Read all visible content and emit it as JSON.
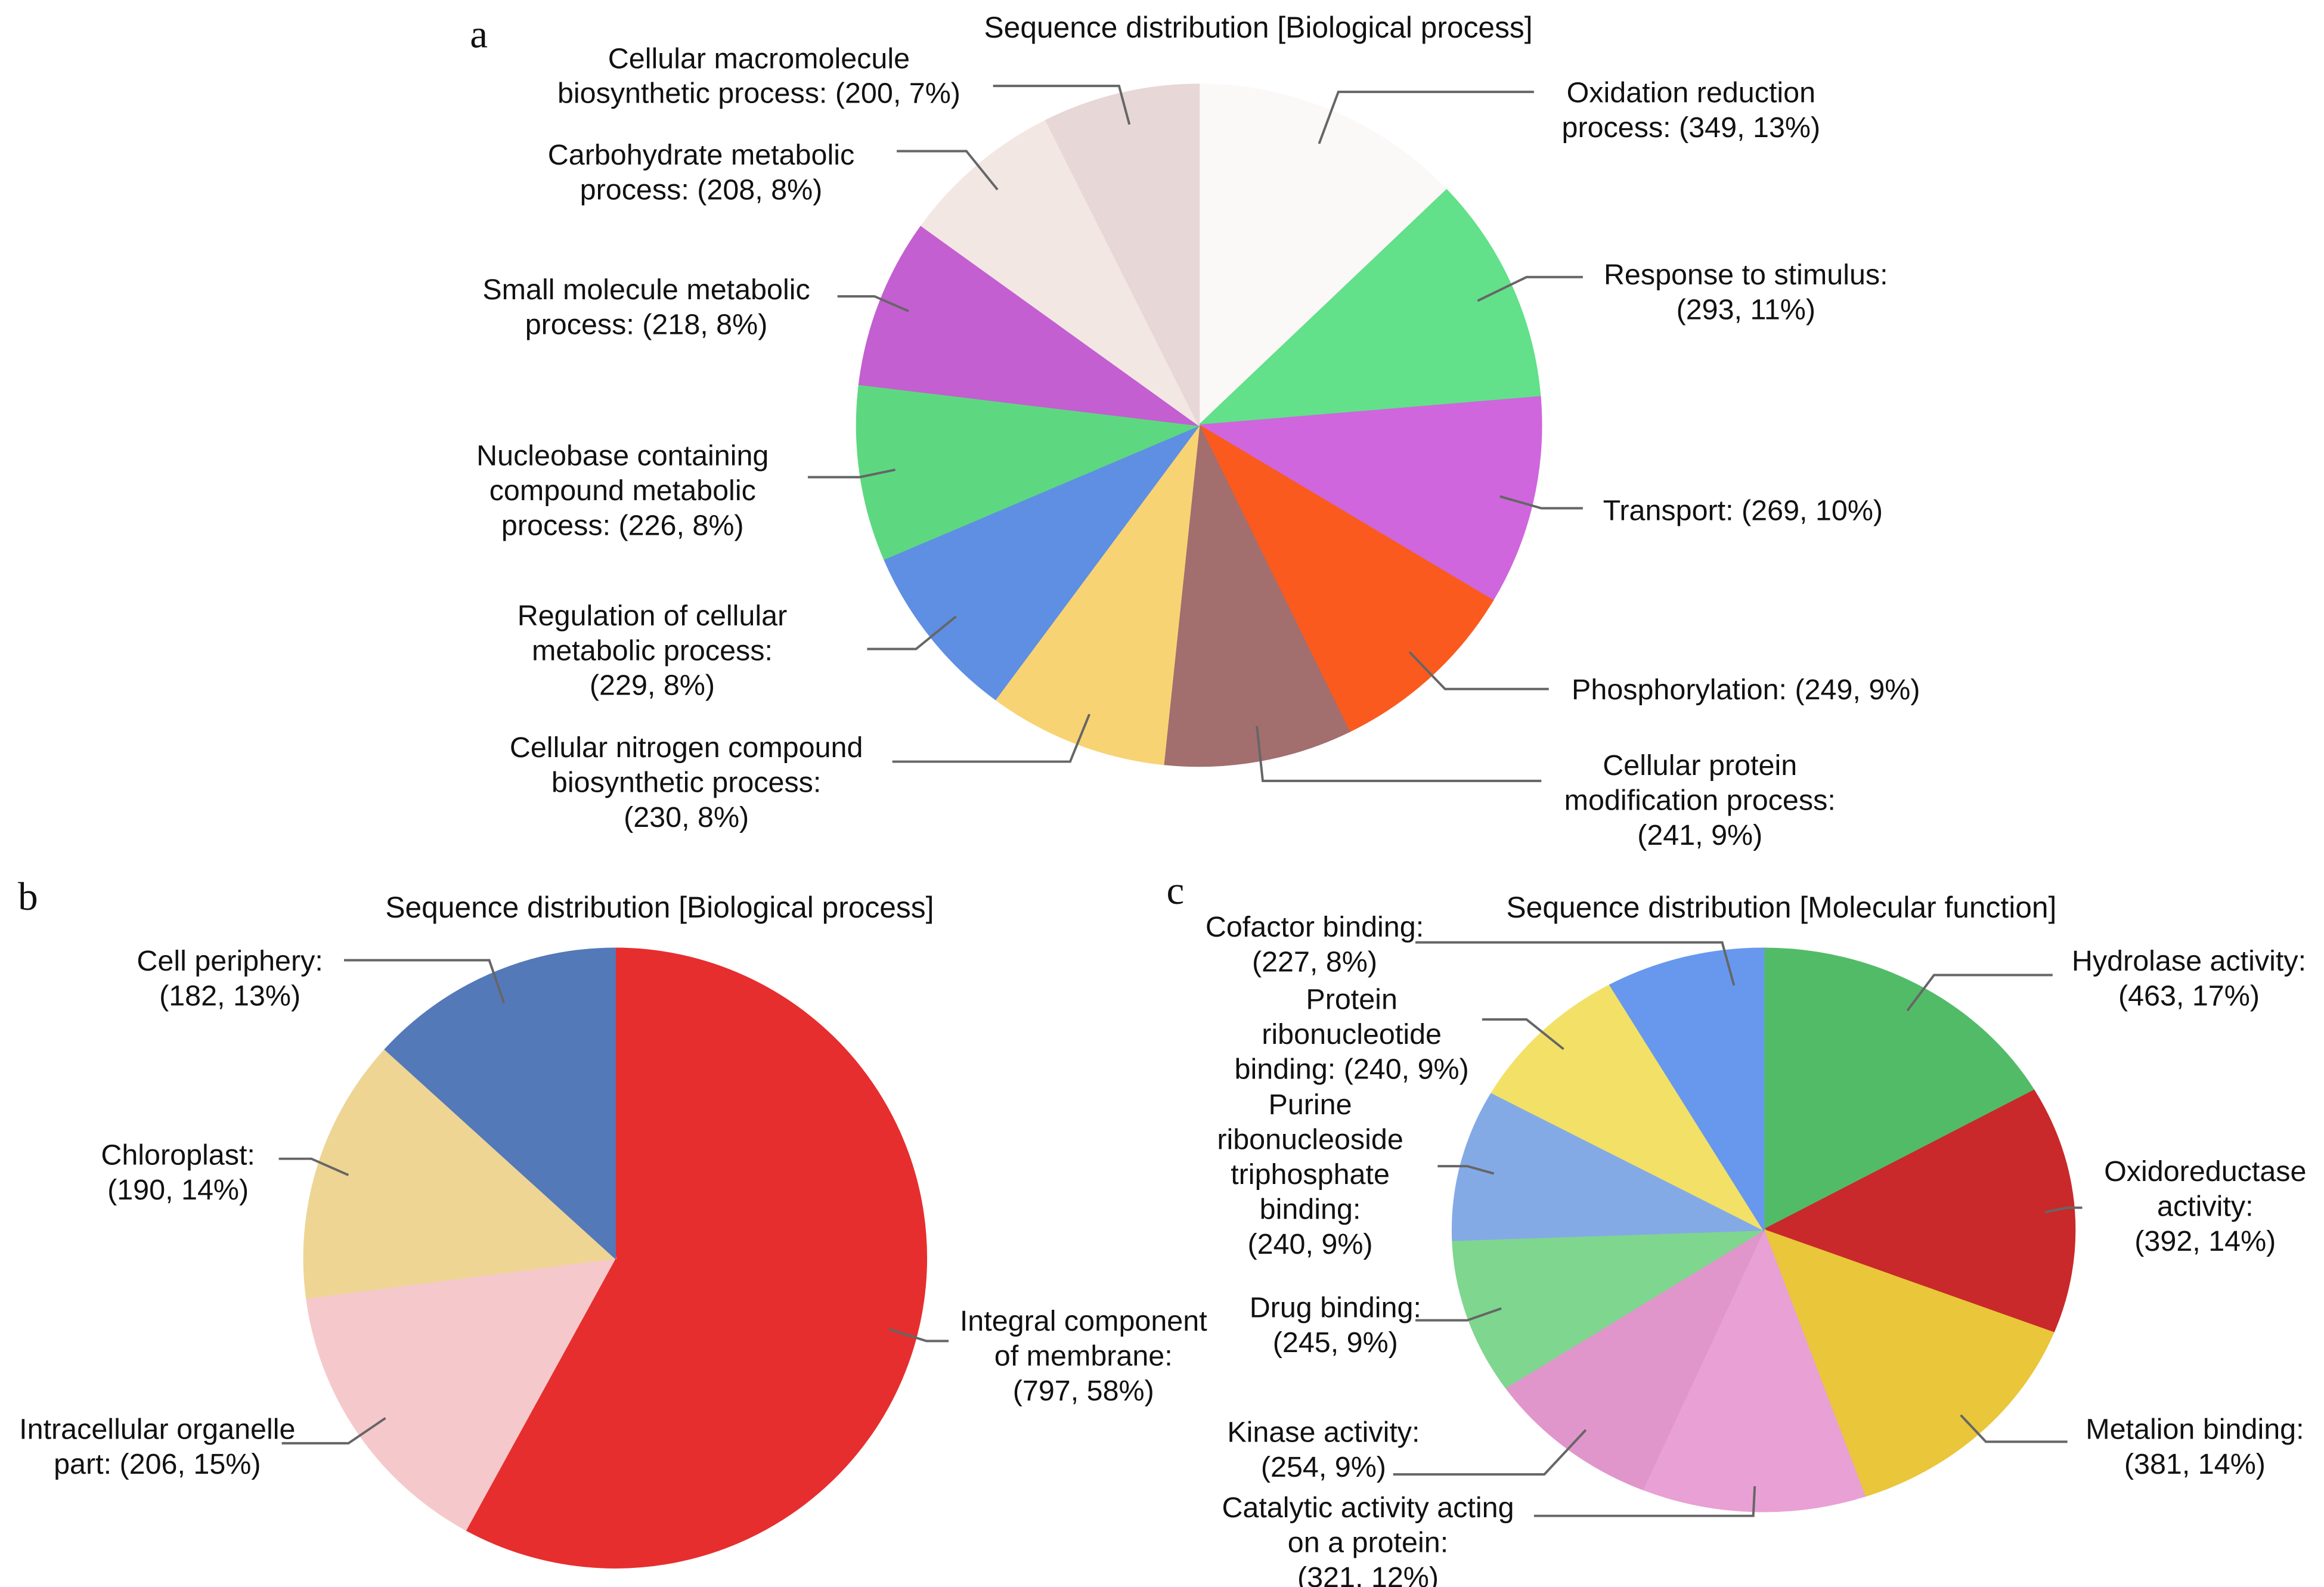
{
  "chart_data": [
    {
      "type": "pie",
      "panel": "a",
      "title": "Sequence distribution [Biological process]",
      "slices": [
        {
          "label": "Oxidation reduction process",
          "value": 349,
          "percent": 13,
          "color": "#fbf8f8",
          "label_lines": [
            "Oxidation reduction",
            "process: (349, 13%)"
          ]
        },
        {
          "label": "Response to stimulus",
          "value": 293,
          "percent": 11,
          "color": "#62e08a",
          "label_lines": [
            "Response to stimulus:",
            "(293, 11%)"
          ]
        },
        {
          "label": "Transport",
          "value": 269,
          "percent": 10,
          "color": "#cf66dd",
          "label_lines": [
            "Transport: (269, 10%)"
          ]
        },
        {
          "label": "Phosphorylation",
          "value": 249,
          "percent": 9,
          "color": "#fa5a1e",
          "label_lines": [
            "Phosphorylation: (249, 9%)"
          ]
        },
        {
          "label": "Cellular protein modification process",
          "value": 241,
          "percent": 9,
          "color": "#a36e6e",
          "label_lines": [
            "Cellular protein",
            "modification process:",
            "(241, 9%)"
          ]
        },
        {
          "label": "Cellular nitrogen compound biosynthetic process",
          "value": 230,
          "percent": 8,
          "color": "#f8d374",
          "label_lines": [
            "Cellular nitrogen compound",
            "biosynthetic process:",
            "(230, 8%)"
          ]
        },
        {
          "label": "Regulation of cellular metabolic process",
          "value": 229,
          "percent": 8,
          "color": "#5f8fe3",
          "label_lines": [
            "Regulation of cellular",
            "metabolic process:",
            "(229, 8%)"
          ]
        },
        {
          "label": "Nucleobase containing compound metabolic process",
          "value": 226,
          "percent": 8,
          "color": "#5dd880",
          "label_lines": [
            "Nucleobase containing",
            "compound metabolic",
            "process: (226, 8%)"
          ]
        },
        {
          "label": "Small molecule metabolic process",
          "value": 218,
          "percent": 8,
          "color": "#c35fd1",
          "label_lines": [
            "Small molecule metabolic",
            "process: (218, 8%)"
          ]
        },
        {
          "label": "Carbohydrate metabolic process",
          "value": 208,
          "percent": 8,
          "color": "#f3e7e4",
          "label_lines": [
            "Carbohydrate metabolic",
            "process: (208, 8%)"
          ]
        },
        {
          "label": "Cellular macromolecule biosynthetic process",
          "value": 200,
          "percent": 7,
          "color": "#e7d7d7",
          "label_lines": [
            "Cellular macromolecule",
            "biosynthetic process: (200, 7%)"
          ]
        }
      ]
    },
    {
      "type": "pie",
      "panel": "b",
      "title": "Sequence distribution [Biological process]",
      "slices": [
        {
          "label": "Integral component of membrane",
          "value": 797,
          "percent": 58,
          "color": "#e62e2e",
          "label_lines": [
            "Integral component",
            "of membrane:",
            "(797, 58%)"
          ]
        },
        {
          "label": "Intracellular organelle part",
          "value": 206,
          "percent": 15,
          "color": "#f5c9cb",
          "label_lines": [
            "Intracellular organelle",
            "part: (206, 15%)"
          ]
        },
        {
          "label": "Chloroplast",
          "value": 190,
          "percent": 14,
          "color": "#eed594",
          "label_lines": [
            "Chloroplast:",
            "(190, 14%)"
          ]
        },
        {
          "label": "Cell periphery",
          "value": 182,
          "percent": 13,
          "color": "#5479b9",
          "label_lines": [
            "Cell periphery:",
            "(182, 13%)"
          ]
        }
      ]
    },
    {
      "type": "pie",
      "panel": "c",
      "title": "Sequence distribution [Molecular function]",
      "slices": [
        {
          "label": "Hydrolase activity",
          "value": 463,
          "percent": 17,
          "color": "#52bb68",
          "label_lines": [
            "Hydrolase activity:",
            "(463, 17%)"
          ]
        },
        {
          "label": "Oxidoreductase activity",
          "value": 392,
          "percent": 14,
          "color": "#c9292a",
          "label_lines": [
            "Oxidoreductase",
            "activity:",
            "(392, 14%)"
          ]
        },
        {
          "label": "Metalion binding",
          "value": 381,
          "percent": 14,
          "color": "#e9c63a",
          "label_lines": [
            "Metalion binding:",
            "(381, 14%)"
          ]
        },
        {
          "label": "Catalytic activity acting on a protein",
          "value": 321,
          "percent": 12,
          "color": "#e9a0d5",
          "label_lines": [
            "Catalytic activity acting",
            "on a protein:",
            "(321, 12%)"
          ]
        },
        {
          "label": "Kinase activity",
          "value": 254,
          "percent": 9,
          "color": "#e096cb",
          "label_lines": [
            "Kinase activity:",
            "(254, 9%)"
          ]
        },
        {
          "label": "Drug binding",
          "value": 245,
          "percent": 9,
          "color": "#7fd68f",
          "label_lines": [
            "Drug binding:",
            "(245, 9%)"
          ]
        },
        {
          "label": "Purine ribonucleoside triphosphate binding",
          "value": 240,
          "percent": 9,
          "color": "#84aae6",
          "label_lines": [
            "Purine",
            "ribonucleoside",
            "triphosphate",
            "binding:",
            "(240, 9%)"
          ]
        },
        {
          "label": "Protein ribonucleotide binding",
          "value": 240,
          "percent": 9,
          "color": "#f2e166",
          "label_lines": [
            "Protein",
            "ribonucleotide",
            "binding: (240, 9%)"
          ]
        },
        {
          "label": "Cofactor binding",
          "value": 227,
          "percent": 8,
          "color": "#6898ee",
          "label_lines": [
            "Cofactor binding:",
            "(227, 8%)"
          ]
        }
      ]
    }
  ]
}
